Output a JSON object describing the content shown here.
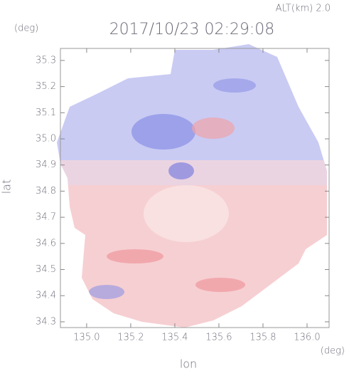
{
  "chart_data": {
    "type": "radar-image",
    "title": "2017/10/23 02:29:08",
    "annotation": "ALT(km) 2.0",
    "y_unit": "(deg)",
    "x_unit": "(deg)",
    "xlabel": "lon",
    "ylabel": "lat",
    "xlim": [
      134.881,
      136.1
    ],
    "ylim": [
      34.278,
      35.346
    ],
    "xticks": [
      {
        "value": 135,
        "label": "135.0"
      },
      135.2,
      135.4,
      135.6,
      135.8,
      {
        "value": 136,
        "label": "136.0"
      }
    ],
    "yticks": [
      34.3,
      34.4,
      34.5,
      34.6,
      34.7,
      34.8,
      34.9,
      {
        "value": 35,
        "label": "35.0"
      },
      35.1,
      35.2,
      35.3
    ]
  }
}
